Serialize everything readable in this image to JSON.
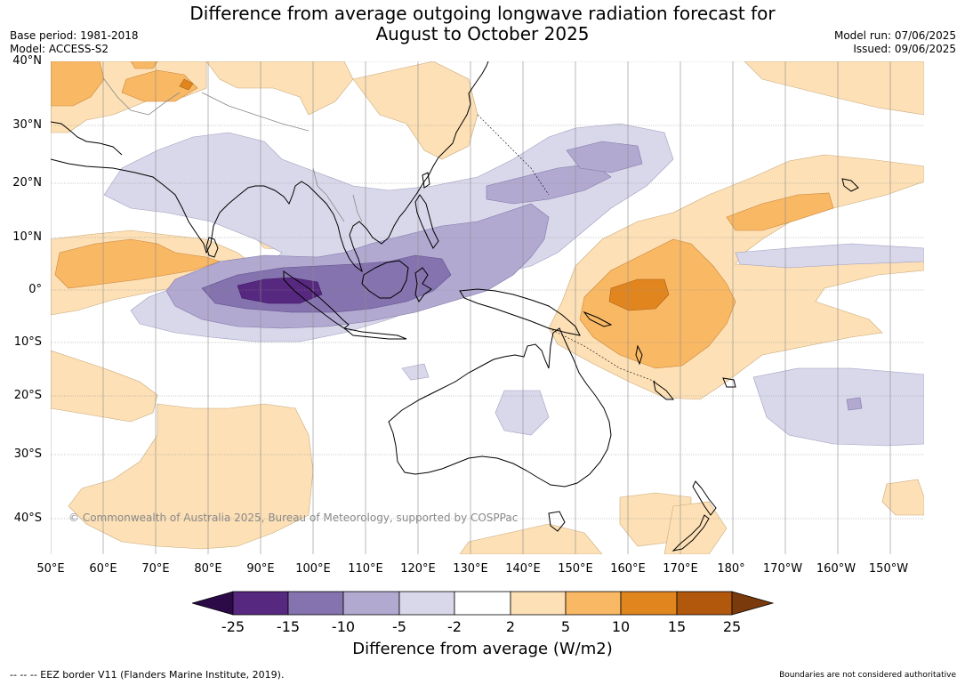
{
  "title": {
    "line1": "Difference from average outgoing longwave radiation forecast for",
    "line2": "August to October 2025"
  },
  "meta_left": {
    "base_period": "Base period: 1981-2018",
    "model": "Model: ACCESS-S2"
  },
  "meta_right": {
    "model_run": "Model run: 07/06/2025",
    "issued": "Issued: 09/06/2025"
  },
  "lat_labels": [
    "40°N",
    "30°N",
    "20°N",
    "10°N",
    "0°",
    "10°S",
    "20°S",
    "30°S",
    "40°S"
  ],
  "lon_labels": [
    "50°E",
    "60°E",
    "70°E",
    "80°E",
    "90°E",
    "100°E",
    "110°E",
    "120°E",
    "130°E",
    "140°E",
    "150°E",
    "160°E",
    "170°E",
    "180°",
    "170°W",
    "160°W",
    "150°W"
  ],
  "copyright": "© Commonwealth of Australia 2025, Bureau of Meteorology, supported by COSPPac",
  "colorbar": {
    "ticks": [
      "-25",
      "-15",
      "-10",
      "-5",
      "-2",
      "2",
      "5",
      "10",
      "15",
      "25"
    ],
    "colors": [
      "#2c0a47",
      "#57287f",
      "#8473ae",
      "#b2a9d1",
      "#d9d8ea",
      "#ffffff",
      "#fde0b6",
      "#f9b864",
      "#e1861f",
      "#b2580d",
      "#7a3a0c"
    ],
    "title": "Difference from average (W/m2)"
  },
  "eez_note": "--  --  -- EEZ border V11 (Flanders Marine Institute, 2019).",
  "disclaimer": "Boundaries are not considered authoritative"
}
